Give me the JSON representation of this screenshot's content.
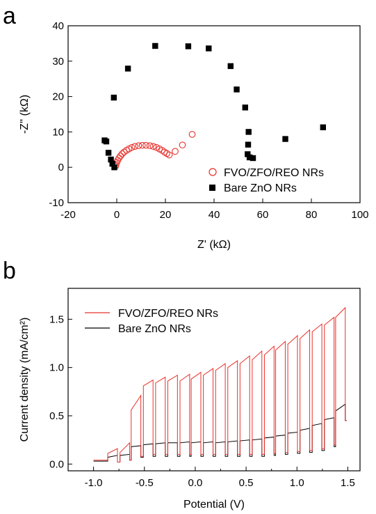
{
  "figure": {
    "panel_a_label": "a",
    "panel_b_label": "b"
  },
  "chart_data": [
    {
      "type": "scatter",
      "panel": "a",
      "xlabel": "Z' (kΩ)",
      "ylabel": "-Z'' (kΩ)",
      "xlim": [
        -20,
        100
      ],
      "ylim": [
        -10,
        40
      ],
      "xticks": [
        -20,
        0,
        20,
        40,
        60,
        80,
        100
      ],
      "yticks": [
        -10,
        0,
        10,
        20,
        30,
        40
      ],
      "legend_position": "bottom-right",
      "series": [
        {
          "name": "FVO/ZFO/REO NRs",
          "marker": "open-circle",
          "color": "#e8302a",
          "x": [
            -0.5,
            -0.3,
            0.0,
            0.4,
            0.9,
            1.5,
            2.2,
            3.0,
            4.0,
            5.0,
            6.2,
            7.5,
            9.0,
            10.5,
            12.0,
            13.6,
            15.0,
            16.3,
            17.5,
            18.6,
            19.6,
            20.6,
            21.6,
            24.0,
            27.0,
            31.0
          ],
          "y": [
            0.3,
            0.8,
            1.4,
            2.0,
            2.6,
            3.2,
            3.8,
            4.3,
            4.8,
            5.2,
            5.6,
            5.9,
            6.1,
            6.2,
            6.2,
            6.1,
            5.9,
            5.6,
            5.2,
            4.8,
            4.3,
            3.9,
            3.5,
            4.5,
            6.3,
            9.3
          ]
        },
        {
          "name": "Bare ZnO NRs",
          "marker": "filled-square",
          "color": "#000000",
          "x": [
            -1.0,
            -1.8,
            -2.4,
            -3.4,
            -4.3,
            -5.0,
            -1.2,
            4.6,
            15.8,
            29.4,
            37.8,
            46.8,
            49.3,
            52.8,
            54.2,
            54.0,
            53.8,
            54.6,
            56.0,
            69.3,
            84.8
          ],
          "y": [
            0.0,
            1.0,
            2.2,
            4.1,
            7.3,
            7.6,
            19.7,
            27.9,
            34.3,
            34.2,
            33.6,
            28.6,
            22.0,
            16.9,
            10.0,
            6.4,
            3.7,
            2.8,
            2.6,
            8.0,
            11.3
          ]
        }
      ]
    },
    {
      "type": "line",
      "panel": "b",
      "xlabel": "Potential (V)",
      "ylabel": "Current density (mA/cm²)",
      "xlim": [
        -1.25,
        1.62
      ],
      "ylim": [
        -0.07,
        1.82
      ],
      "xticks": [
        -1.0,
        -0.5,
        0.0,
        0.5,
        1.0,
        1.5
      ],
      "xtick_labels": [
        "-1.0",
        "-0.5",
        "0.0",
        "0.5",
        "1.0",
        "1.5"
      ],
      "yticks": [
        0.0,
        0.5,
        1.0,
        1.5
      ],
      "ytick_labels": [
        "0.0",
        "0.5",
        "1.0",
        "1.5"
      ],
      "legend_position": "top-left",
      "chopping": {
        "on_starts": [
          -0.86,
          -0.74,
          -0.63,
          -0.51,
          -0.39,
          -0.27,
          -0.15,
          -0.04,
          0.08,
          0.2,
          0.32,
          0.44,
          0.56,
          0.68,
          0.79,
          0.91,
          1.03,
          1.15,
          1.27,
          1.38
        ],
        "on_width": 0.095
      },
      "series": [
        {
          "name": "FVO/ZFO/REO NRs",
          "color": "#e8302a",
          "x": [
            -1.0,
            -0.86,
            -0.74,
            -0.63,
            -0.51,
            -0.39,
            -0.27,
            -0.15,
            -0.04,
            0.08,
            0.2,
            0.32,
            0.44,
            0.56,
            0.68,
            0.79,
            0.91,
            1.03,
            1.15,
            1.27,
            1.38,
            1.49
          ],
          "on_start": [
            0.04,
            0.11,
            0.12,
            0.56,
            0.81,
            0.84,
            0.86,
            0.86,
            0.88,
            0.92,
            0.97,
            1.0,
            1.04,
            1.08,
            1.13,
            1.18,
            1.24,
            1.3,
            1.37,
            1.44,
            1.52
          ],
          "on_end": [
            0.04,
            0.16,
            0.22,
            0.71,
            0.87,
            0.9,
            0.92,
            0.93,
            0.95,
            0.99,
            1.04,
            1.07,
            1.12,
            1.17,
            1.22,
            1.27,
            1.33,
            1.39,
            1.45,
            1.52,
            1.62
          ],
          "dark": [
            0.04,
            0.02,
            0.04,
            0.08,
            0.1,
            0.1,
            0.1,
            0.1,
            0.1,
            0.1,
            0.1,
            0.1,
            0.1,
            0.1,
            0.11,
            0.12,
            0.13,
            0.14,
            0.16,
            0.2,
            0.45
          ]
        },
        {
          "name": "Bare ZnO NRs",
          "color": "#000000",
          "x": [
            -1.0,
            -0.86,
            -0.74,
            -0.63,
            -0.51,
            -0.39,
            -0.27,
            -0.15,
            -0.04,
            0.08,
            0.2,
            0.32,
            0.44,
            0.56,
            0.68,
            0.79,
            0.91,
            1.03,
            1.15,
            1.27,
            1.38,
            1.49
          ],
          "on_start": [
            0.03,
            0.07,
            0.09,
            0.18,
            0.2,
            0.21,
            0.22,
            0.22,
            0.22,
            0.22,
            0.22,
            0.23,
            0.24,
            0.25,
            0.27,
            0.29,
            0.32,
            0.35,
            0.4,
            0.46,
            0.55
          ],
          "on_end": [
            0.03,
            0.09,
            0.1,
            0.19,
            0.21,
            0.22,
            0.22,
            0.23,
            0.23,
            0.23,
            0.23,
            0.24,
            0.25,
            0.26,
            0.28,
            0.3,
            0.33,
            0.37,
            0.42,
            0.48,
            0.62
          ],
          "dark": [
            0.03,
            0.02,
            0.04,
            0.07,
            0.08,
            0.08,
            0.08,
            0.08,
            0.08,
            0.08,
            0.08,
            0.08,
            0.08,
            0.08,
            0.09,
            0.1,
            0.11,
            0.12,
            0.14,
            0.18,
            0.45
          ]
        }
      ]
    }
  ]
}
